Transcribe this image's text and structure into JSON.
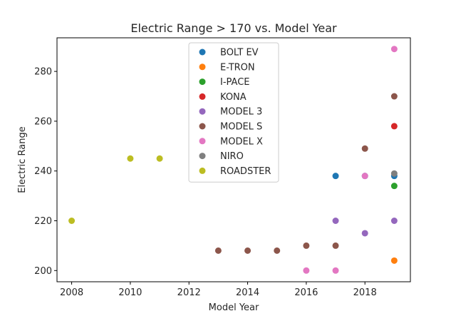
{
  "chart_data": {
    "type": "scatter",
    "title": "Electric Range > 170 vs. Model Year",
    "xlabel": "Model Year",
    "ylabel": "Electric Range",
    "xlim": [
      2007.5,
      2019.55
    ],
    "ylim": [
      195.5,
      293.5
    ],
    "xticks": [
      2008,
      2010,
      2012,
      2014,
      2016,
      2018
    ],
    "yticks": [
      200,
      220,
      240,
      260,
      280
    ],
    "grid": false,
    "legend_position": "top-center",
    "series": [
      {
        "name": "BOLT EV",
        "color": "#1f77b4",
        "points": [
          [
            2017,
            238
          ],
          [
            2018,
            238
          ],
          [
            2019,
            238
          ]
        ]
      },
      {
        "name": "E-TRON",
        "color": "#ff7f0e",
        "points": [
          [
            2019,
            204
          ]
        ]
      },
      {
        "name": "I-PACE",
        "color": "#2ca02c",
        "points": [
          [
            2019,
            234
          ]
        ]
      },
      {
        "name": "KONA",
        "color": "#d62728",
        "points": [
          [
            2019,
            258
          ]
        ]
      },
      {
        "name": "MODEL 3",
        "color": "#9467bd",
        "points": [
          [
            2017,
            220
          ],
          [
            2018,
            215
          ],
          [
            2019,
            220
          ]
        ]
      },
      {
        "name": "MODEL S",
        "color": "#8c564b",
        "points": [
          [
            2013,
            208
          ],
          [
            2014,
            208
          ],
          [
            2015,
            208
          ],
          [
            2016,
            210
          ],
          [
            2017,
            210
          ],
          [
            2018,
            249
          ],
          [
            2019,
            270
          ]
        ]
      },
      {
        "name": "MODEL X",
        "color": "#e377c2",
        "points": [
          [
            2016,
            200
          ],
          [
            2017,
            200
          ],
          [
            2018,
            238
          ],
          [
            2019,
            289
          ]
        ]
      },
      {
        "name": "NIRO",
        "color": "#7f7f7f",
        "points": [
          [
            2019,
            239
          ]
        ]
      },
      {
        "name": "ROADSTER",
        "color": "#bcbd22",
        "points": [
          [
            2008,
            220
          ],
          [
            2010,
            245
          ],
          [
            2011,
            245
          ]
        ]
      }
    ]
  }
}
